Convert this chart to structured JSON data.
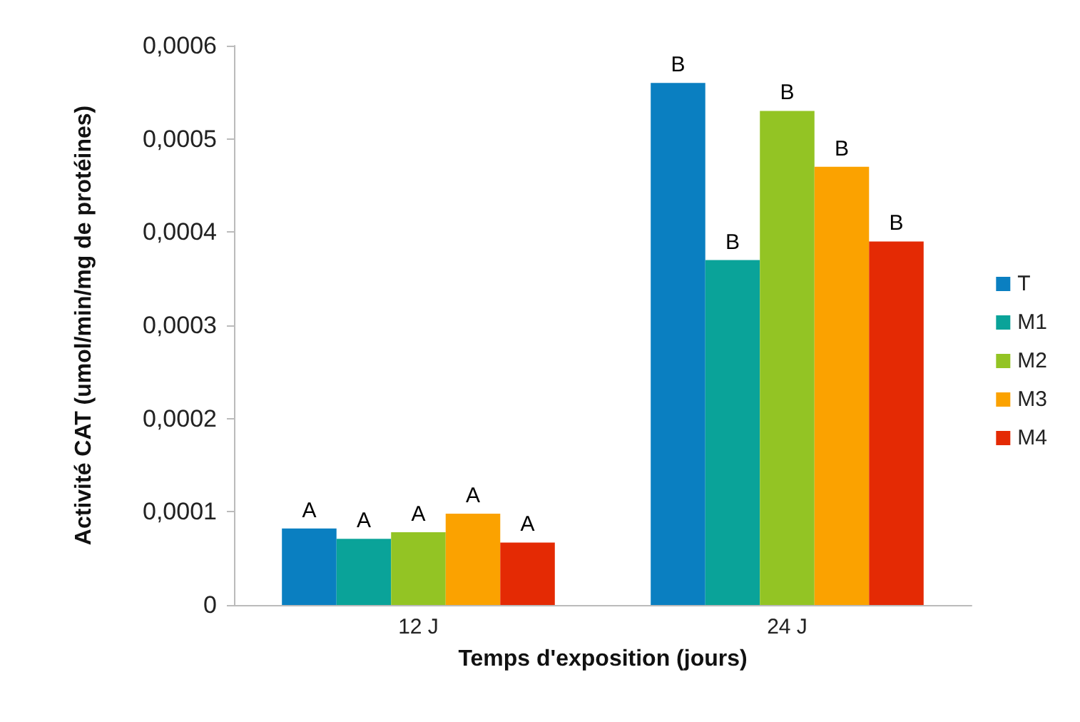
{
  "chart_data": {
    "type": "bar",
    "xlabel": "Temps d'exposition (jours)",
    "ylabel": "Activité CAT (umol/min/mg de protéines)",
    "categories": [
      "12 J",
      "24 J"
    ],
    "series": [
      {
        "name": "T",
        "color": "#0a7fc1",
        "values": [
          8.2e-05,
          0.00056
        ],
        "value_labels": [
          "A",
          "B"
        ]
      },
      {
        "name": "M1",
        "color": "#0aa399",
        "values": [
          7.1e-05,
          0.00037
        ],
        "value_labels": [
          "A",
          "B"
        ]
      },
      {
        "name": "M2",
        "color": "#93c424",
        "values": [
          7.8e-05,
          0.00053
        ],
        "value_labels": [
          "A",
          "B"
        ]
      },
      {
        "name": "M3",
        "color": "#fba200",
        "values": [
          9.8e-05,
          0.00047
        ],
        "value_labels": [
          "A",
          "B"
        ]
      },
      {
        "name": "M4",
        "color": "#e42a04",
        "values": [
          6.7e-05,
          0.00039
        ],
        "value_labels": [
          "A",
          "B"
        ]
      }
    ],
    "ylim": [
      0,
      0.0006
    ],
    "yticks": [
      {
        "value": 0,
        "label": "0"
      },
      {
        "value": 0.0001,
        "label": "0,0001"
      },
      {
        "value": 0.0002,
        "label": "0,0002"
      },
      {
        "value": 0.0003,
        "label": "0,0003"
      },
      {
        "value": 0.0004,
        "label": "0,0004"
      },
      {
        "value": 0.0005,
        "label": "0,0005"
      },
      {
        "value": 0.0006,
        "label": "0,0006"
      }
    ],
    "grid": false,
    "legend": "right"
  }
}
